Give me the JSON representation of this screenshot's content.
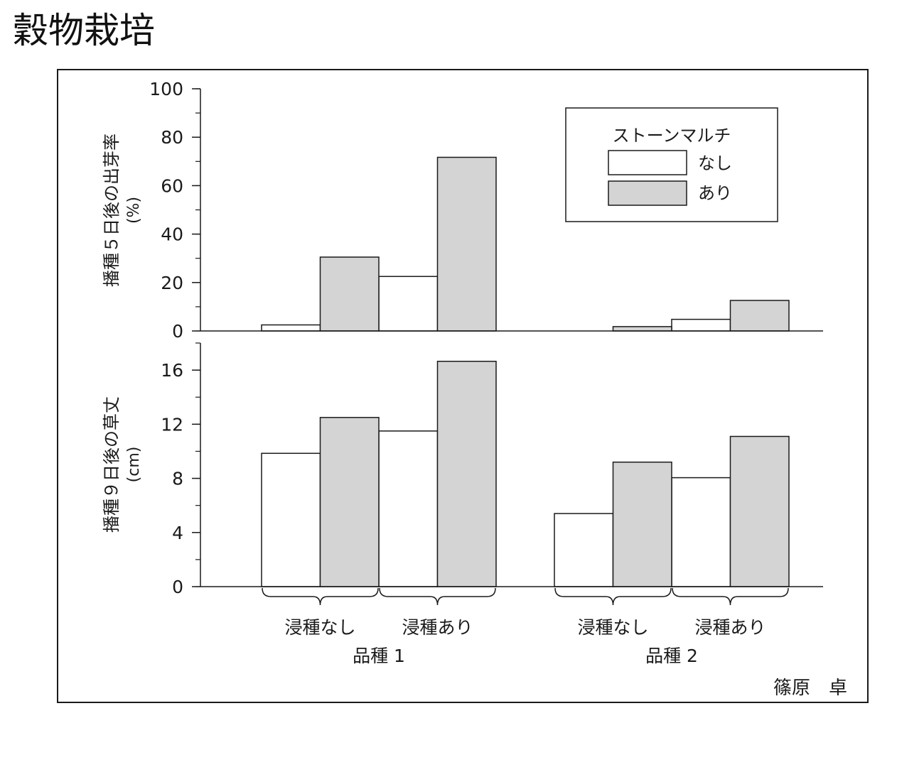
{
  "page_title": "穀物栽培",
  "author": "篠原　卓",
  "legend": {
    "title": "ストーンマルチ",
    "items": [
      {
        "label": "なし",
        "color": "#ffffff"
      },
      {
        "label": "あり",
        "color": "#d4d4d4"
      }
    ]
  },
  "chart_data": [
    {
      "type": "bar",
      "ylabel": "播種５日後の出芽率",
      "yunit": "(%)",
      "ylim": [
        0,
        100
      ],
      "yticks": [
        "0",
        "20",
        "40",
        "60",
        "80",
        "100"
      ],
      "minor_tick_step": 10,
      "categories": [
        "浸種なし",
        "浸種あり",
        "浸種なし",
        "浸種あり"
      ],
      "groups": [
        "品種 1",
        "品種 1",
        "品種 2",
        "品種 2"
      ],
      "series": [
        {
          "name": "なし",
          "values": [
            2.5,
            22.5,
            0,
            4.8
          ]
        },
        {
          "name": "あり",
          "values": [
            30.5,
            71.7,
            1.8,
            12.6
          ]
        }
      ]
    },
    {
      "type": "bar",
      "ylabel": "播種９日後の草丈",
      "yunit": "(cm)",
      "ylim": [
        0,
        18
      ],
      "yticks": [
        "0",
        "4",
        "8",
        "12",
        "16"
      ],
      "minor_tick_step": 2,
      "categories": [
        "浸種なし",
        "浸種あり",
        "浸種なし",
        "浸種あり"
      ],
      "groups": [
        "品種 1",
        "品種 1",
        "品種 2",
        "品種 2"
      ],
      "series": [
        {
          "name": "なし",
          "values": [
            9.85,
            11.5,
            5.4,
            8.05
          ]
        },
        {
          "name": "あり",
          "values": [
            12.5,
            16.65,
            9.2,
            11.1
          ]
        }
      ]
    }
  ],
  "x_axis": {
    "categories": [
      "浸種なし",
      "浸種あり",
      "浸種なし",
      "浸種あり"
    ],
    "groups": [
      "品種 1",
      "品種 2"
    ]
  }
}
